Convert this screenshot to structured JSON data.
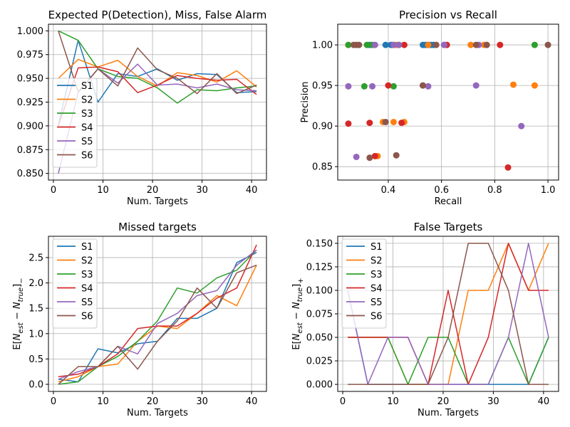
{
  "figure": {
    "series_colors": [
      "#1f77b4",
      "#ff7f0e",
      "#2ca02c",
      "#d62728",
      "#9467bd",
      "#8c564b"
    ]
  },
  "chart_data": [
    {
      "id": "expected-detection",
      "type": "line",
      "title": "Expected P(Detection), Miss, False Alarm",
      "xlabel": "Num. Targets",
      "ylabel": "",
      "xlim": [
        -1,
        43
      ],
      "ylim": [
        0.843,
        1.007
      ],
      "xticks": [
        0,
        10,
        20,
        30,
        40
      ],
      "yticks": [
        0.85,
        0.875,
        0.9,
        0.925,
        0.95,
        0.975,
        1.0
      ],
      "ytick_labels": [
        "0.850",
        "0.875",
        "0.900",
        "0.925",
        "0.950",
        "0.975",
        "1.000"
      ],
      "grid": true,
      "legend": "center-left",
      "x": [
        1,
        5,
        9,
        13,
        17,
        21,
        25,
        29,
        33,
        37,
        41
      ],
      "series": [
        {
          "name": "S1",
          "values": [
            0.901,
            0.99,
            0.925,
            0.955,
            0.952,
            0.96,
            0.948,
            0.955,
            0.954,
            0.935,
            0.936
          ]
        },
        {
          "name": "S2",
          "values": [
            0.95,
            0.97,
            0.962,
            0.969,
            0.952,
            0.942,
            0.956,
            0.953,
            0.946,
            0.958,
            0.941
          ]
        },
        {
          "name": "S3",
          "values": [
            1.0,
            0.99,
            0.96,
            0.952,
            0.95,
            0.94,
            0.924,
            0.938,
            0.937,
            0.94,
            0.942
          ]
        },
        {
          "name": "S4",
          "values": [
            0.9,
            0.961,
            0.962,
            0.957,
            0.935,
            0.943,
            0.953,
            0.95,
            0.948,
            0.949,
            0.933
          ]
        },
        {
          "name": "S5",
          "values": [
            0.85,
            0.935,
            0.96,
            0.945,
            0.965,
            0.943,
            0.944,
            0.94,
            0.944,
            0.938,
            0.937
          ]
        },
        {
          "name": "S6",
          "values": [
            1.0,
            0.936,
            0.96,
            0.942,
            0.982,
            0.959,
            0.95,
            0.934,
            0.955,
            0.934,
            0.943
          ]
        }
      ]
    },
    {
      "id": "precision-recall",
      "type": "scatter",
      "title": "Precision vs Recall",
      "xlabel": "Recall",
      "ylabel": "Precision",
      "xlim": [
        0.21,
        1.04
      ],
      "ylim": [
        0.8335,
        1.0255
      ],
      "xticks": [
        0.4,
        0.6,
        0.8,
        1.0
      ],
      "xtick_labels": [
        "0.4",
        "0.6",
        "0.8",
        "1.0"
      ],
      "yticks": [
        0.85,
        0.9,
        0.95,
        1.0
      ],
      "ytick_labels": [
        "0.85",
        "0.90",
        "0.95",
        "1.00"
      ],
      "grid": true,
      "series": [
        {
          "name": "S1",
          "points": [
            [
              0.39,
              1.0
            ],
            [
              0.41,
              1.0
            ],
            [
              0.42,
              1.0
            ],
            [
              0.53,
              1.0
            ],
            [
              0.54,
              1.0
            ],
            [
              0.56,
              1.0
            ],
            [
              0.57,
              1.0
            ],
            [
              0.61,
              1.0
            ],
            [
              0.33,
              1.0
            ],
            [
              0.55,
              1.0
            ]
          ]
        },
        {
          "name": "S2",
          "points": [
            [
              0.25,
              1.0
            ],
            [
              0.43,
              1.0
            ],
            [
              0.55,
              1.0
            ],
            [
              0.71,
              1.0
            ],
            [
              0.76,
              1.0
            ],
            [
              0.87,
              0.951
            ],
            [
              0.95,
              0.95
            ],
            [
              0.38,
              0.905
            ],
            [
              0.42,
              0.905
            ],
            [
              0.46,
              0.905
            ],
            [
              0.36,
              0.863
            ]
          ]
        },
        {
          "name": "S3",
          "points": [
            [
              0.25,
              1.0
            ],
            [
              0.32,
              1.0
            ],
            [
              0.34,
              1.0
            ],
            [
              0.95,
              1.0
            ],
            [
              0.31,
              0.949
            ],
            [
              0.42,
              0.949
            ],
            [
              0.53,
              0.95
            ],
            [
              0.44,
              1.0
            ]
          ]
        },
        {
          "name": "S4",
          "points": [
            [
              0.46,
              1.0
            ],
            [
              0.62,
              1.0
            ],
            [
              0.82,
              1.0
            ],
            [
              0.4,
              0.95
            ],
            [
              0.25,
              0.903
            ],
            [
              0.33,
              0.904
            ],
            [
              0.45,
              0.904
            ],
            [
              0.35,
              0.863
            ],
            [
              0.85,
              0.849
            ]
          ]
        },
        {
          "name": "S5",
          "points": [
            [
              0.35,
              1.0
            ],
            [
              0.42,
              1.0
            ],
            [
              0.44,
              1.0
            ],
            [
              0.61,
              1.0
            ],
            [
              0.74,
              1.0
            ],
            [
              0.25,
              0.949
            ],
            [
              0.34,
              0.949
            ],
            [
              0.55,
              0.949
            ],
            [
              0.73,
              0.95
            ],
            [
              0.9,
              0.9
            ],
            [
              0.28,
              0.862
            ]
          ]
        },
        {
          "name": "S6",
          "points": [
            [
              0.27,
              1.0
            ],
            [
              0.28,
              1.0
            ],
            [
              0.29,
              1.0
            ],
            [
              0.58,
              1.0
            ],
            [
              0.73,
              1.0
            ],
            [
              0.77,
              1.0
            ],
            [
              1.0,
              1.0
            ],
            [
              0.53,
              0.95
            ],
            [
              0.39,
              0.905
            ],
            [
              0.33,
              0.861
            ],
            [
              0.43,
              0.864
            ]
          ]
        }
      ]
    },
    {
      "id": "missed-targets",
      "type": "line",
      "title": "Missed targets",
      "xlabel": "Num. Targets",
      "ylabel": "E[N_est − N_true]_−",
      "xlim": [
        -1,
        43
      ],
      "ylim": [
        -0.14,
        2.92
      ],
      "xticks": [
        0,
        10,
        20,
        30,
        40
      ],
      "yticks": [
        0.0,
        0.5,
        1.0,
        1.5,
        2.0,
        2.5
      ],
      "ytick_labels": [
        "0.0",
        "0.5",
        "1.0",
        "1.5",
        "2.0",
        "2.5"
      ],
      "grid": true,
      "legend": "upper-left",
      "x": [
        1,
        5,
        9,
        13,
        17,
        21,
        25,
        29,
        33,
        37,
        41
      ],
      "series": [
        {
          "name": "S1",
          "values": [
            0.1,
            0.05,
            0.7,
            0.62,
            0.8,
            0.85,
            1.3,
            1.3,
            1.5,
            2.4,
            2.6
          ]
        },
        {
          "name": "S2",
          "values": [
            0.05,
            0.15,
            0.35,
            0.4,
            0.85,
            1.15,
            1.1,
            1.4,
            1.75,
            1.55,
            2.35
          ]
        },
        {
          "name": "S3",
          "values": [
            0.0,
            0.05,
            0.35,
            0.55,
            0.85,
            1.25,
            1.9,
            1.8,
            2.1,
            2.25,
            2.65
          ]
        },
        {
          "name": "S4",
          "values": [
            0.15,
            0.2,
            0.35,
            0.6,
            1.1,
            1.15,
            1.15,
            1.4,
            1.7,
            1.9,
            2.75
          ]
        },
        {
          "name": "S5",
          "values": [
            0.1,
            0.25,
            0.35,
            0.75,
            0.6,
            1.2,
            1.4,
            1.75,
            1.85,
            2.35,
            2.65
          ]
        },
        {
          "name": "S6",
          "values": [
            0.0,
            0.35,
            0.35,
            0.75,
            0.3,
            0.85,
            1.25,
            1.9,
            1.5,
            2.2,
            2.35
          ]
        }
      ]
    },
    {
      "id": "false-targets",
      "type": "line",
      "title": "False Targets",
      "xlabel": "Num. Targets",
      "ylabel": "E[N_est − N_true]_+",
      "xlim": [
        -1,
        43
      ],
      "ylim": [
        -0.0075,
        0.1575
      ],
      "xticks": [
        0,
        10,
        20,
        30,
        40
      ],
      "yticks": [
        0.0,
        0.025,
        0.05,
        0.075,
        0.1,
        0.125,
        0.15
      ],
      "ytick_labels": [
        "0.000",
        "0.025",
        "0.050",
        "0.075",
        "0.100",
        "0.125",
        "0.150"
      ],
      "grid": true,
      "legend": "upper-left",
      "x": [
        1,
        5,
        9,
        13,
        17,
        21,
        25,
        29,
        33,
        37,
        41
      ],
      "series": [
        {
          "name": "S1",
          "values": [
            0.1,
            0.0,
            0.0,
            0.0,
            0.0,
            0.0,
            0.0,
            0.0,
            0.0,
            0.0,
            0.05
          ]
        },
        {
          "name": "S2",
          "values": [
            0.05,
            0.05,
            0.05,
            0.0,
            0.0,
            0.0,
            0.1,
            0.1,
            0.15,
            0.1,
            0.15
          ]
        },
        {
          "name": "S3",
          "values": [
            0.05,
            0.05,
            0.05,
            0.0,
            0.05,
            0.05,
            0.0,
            0.0,
            0.05,
            0.0,
            0.05
          ]
        },
        {
          "name": "S4",
          "values": [
            0.05,
            0.05,
            0.05,
            0.05,
            0.0,
            0.1,
            0.0,
            0.05,
            0.15,
            0.1,
            0.1
          ]
        },
        {
          "name": "S5",
          "values": [
            0.1,
            0.0,
            0.05,
            0.05,
            0.0,
            0.0,
            0.0,
            0.0,
            0.05,
            0.15,
            0.05
          ]
        },
        {
          "name": "S6",
          "values": [
            0.0,
            0.0,
            0.0,
            0.0,
            0.0,
            0.05,
            0.15,
            0.15,
            0.1,
            0.0,
            0.0
          ]
        }
      ]
    }
  ]
}
